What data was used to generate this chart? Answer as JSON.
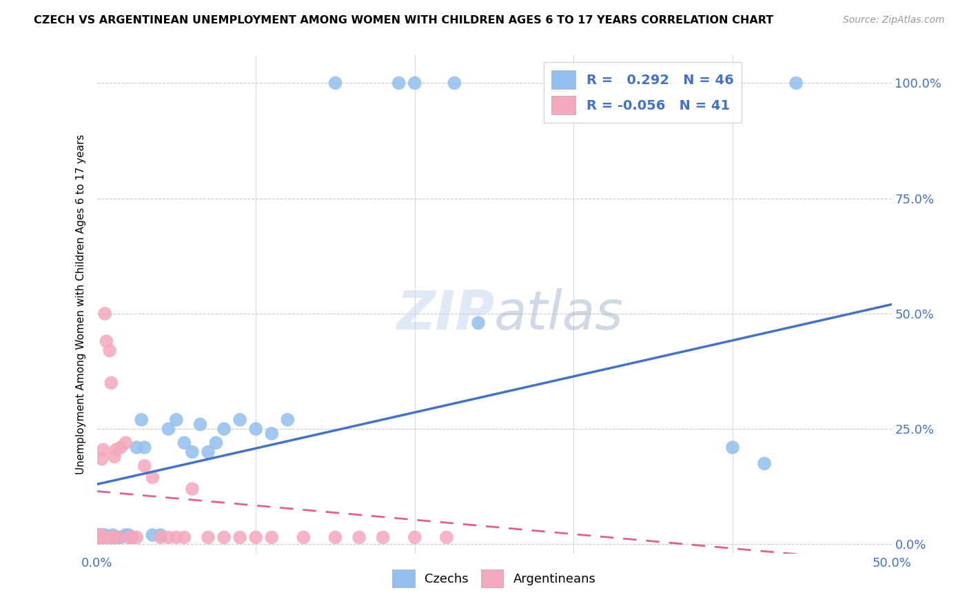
{
  "title": "CZECH VS ARGENTINEAN UNEMPLOYMENT AMONG WOMEN WITH CHILDREN AGES 6 TO 17 YEARS CORRELATION CHART",
  "source": "Source: ZipAtlas.com",
  "ylabel": "Unemployment Among Women with Children Ages 6 to 17 years",
  "legend_bottom_czech": "Czechs",
  "legend_bottom_arg": "Argentineans",
  "czech_R": 0.292,
  "czech_N": 46,
  "arg_R": -0.056,
  "arg_N": 41,
  "czech_color": "#92BFED",
  "arg_color": "#F4A8BC",
  "czech_line_color": "#4472C4",
  "arg_line_color": "#E06090",
  "xlim": [
    0.0,
    0.5
  ],
  "ylim": [
    -0.02,
    1.06
  ],
  "czech_line_x0": 0.0,
  "czech_line_y0": 0.13,
  "czech_line_x1": 0.5,
  "czech_line_y1": 0.52,
  "arg_line_x0": 0.0,
  "arg_line_y0": 0.115,
  "arg_line_x1": 0.5,
  "arg_line_y1": -0.04,
  "czech_x": [
    0.001,
    0.001,
    0.002,
    0.002,
    0.003,
    0.004,
    0.004,
    0.005,
    0.005,
    0.006,
    0.007,
    0.008,
    0.009,
    0.01,
    0.01,
    0.012,
    0.013,
    0.015,
    0.018,
    0.02,
    0.022,
    0.025,
    0.028,
    0.03,
    0.035,
    0.04,
    0.045,
    0.05,
    0.055,
    0.06,
    0.065,
    0.07,
    0.075,
    0.08,
    0.09,
    0.1,
    0.11,
    0.12,
    0.15,
    0.19,
    0.2,
    0.225,
    0.24,
    0.4,
    0.42,
    0.44
  ],
  "czech_y": [
    0.02,
    0.015,
    0.015,
    0.02,
    0.015,
    0.015,
    0.02,
    0.015,
    0.02,
    0.015,
    0.015,
    0.015,
    0.015,
    0.02,
    0.015,
    0.015,
    0.015,
    0.015,
    0.02,
    0.02,
    0.015,
    0.21,
    0.27,
    0.21,
    0.02,
    0.02,
    0.25,
    0.27,
    0.22,
    0.2,
    0.26,
    0.2,
    0.22,
    0.25,
    0.27,
    0.25,
    0.24,
    0.27,
    1.0,
    1.0,
    1.0,
    1.0,
    0.48,
    0.21,
    0.175,
    1.0
  ],
  "arg_x": [
    0.001,
    0.001,
    0.002,
    0.002,
    0.003,
    0.003,
    0.004,
    0.004,
    0.005,
    0.006,
    0.006,
    0.007,
    0.008,
    0.009,
    0.01,
    0.011,
    0.012,
    0.013,
    0.015,
    0.018,
    0.02,
    0.022,
    0.025,
    0.03,
    0.035,
    0.04,
    0.045,
    0.05,
    0.055,
    0.06,
    0.07,
    0.08,
    0.09,
    0.1,
    0.11,
    0.13,
    0.15,
    0.165,
    0.18,
    0.2,
    0.22
  ],
  "arg_y": [
    0.02,
    0.015,
    0.015,
    0.02,
    0.015,
    0.185,
    0.205,
    0.015,
    0.5,
    0.015,
    0.44,
    0.015,
    0.42,
    0.35,
    0.015,
    0.19,
    0.205,
    0.015,
    0.21,
    0.22,
    0.015,
    0.015,
    0.015,
    0.17,
    0.145,
    0.015,
    0.015,
    0.015,
    0.015,
    0.12,
    0.015,
    0.015,
    0.015,
    0.015,
    0.015,
    0.015,
    0.015,
    0.015,
    0.015,
    0.015,
    0.015
  ]
}
